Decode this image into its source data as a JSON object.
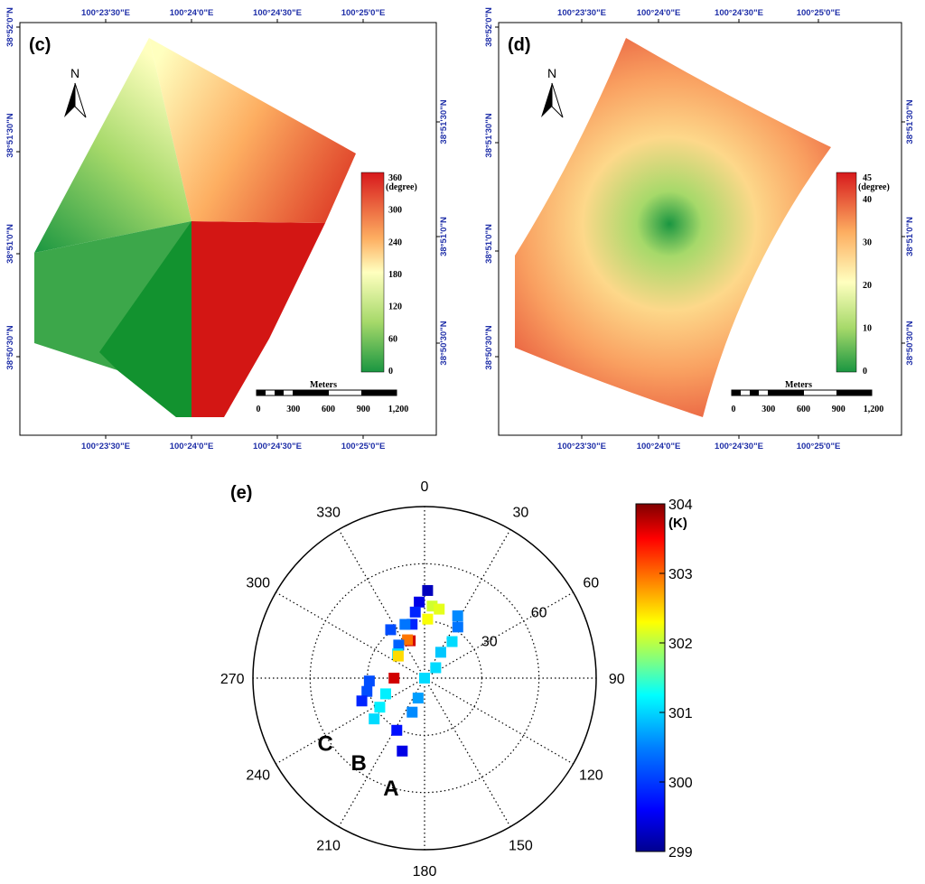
{
  "chart_data": [
    {
      "panel": "(c)",
      "type": "heatmap",
      "description_name": "aspect map",
      "north_label": "N",
      "lon_ticks": [
        "100°23'30\"E",
        "100°24'0\"E",
        "100°24'30\"E",
        "100°25'0\"E"
      ],
      "lat_ticks": [
        "38°52'0\"N",
        "38°51'30\"N",
        "38°51'0\"N",
        "38°50'30\"N"
      ],
      "colorbar": {
        "unit": "(degree)",
        "min": 0,
        "max": 360,
        "ticks": [
          "360",
          "300",
          "240",
          "180",
          "120",
          "60",
          "0"
        ],
        "colors": [
          "#d7191c",
          "#fdae61",
          "#ffffbf",
          "#a6d96a",
          "#1a9641"
        ]
      },
      "scalebar": {
        "title": "Meters",
        "labels": [
          "0",
          "300",
          "600",
          "900",
          "1,200"
        ]
      }
    },
    {
      "panel": "(d)",
      "type": "heatmap",
      "description_name": "slope map",
      "north_label": "N",
      "lon_ticks": [
        "100°23'30\"E",
        "100°24'0\"E",
        "100°24'30\"E",
        "100°25'0\"E"
      ],
      "lat_ticks": [
        "38°52'0\"N",
        "38°51'30\"N",
        "38°51'0\"N",
        "38°50'30\"N"
      ],
      "colorbar": {
        "unit": "(degree)",
        "min": 0,
        "max": 45,
        "ticks": [
          "45",
          "40",
          "30",
          "20",
          "10",
          "0"
        ],
        "colors": [
          "#d7191c",
          "#fdae61",
          "#ffffbf",
          "#a6d96a",
          "#1a9641"
        ]
      },
      "scalebar": {
        "title": "Meters",
        "labels": [
          "0",
          "300",
          "600",
          "900",
          "1,200"
        ]
      }
    },
    {
      "panel": "(e)",
      "type": "scatter",
      "coordinate_system": "polar",
      "azimuth_labels": [
        {
          "angle": 0,
          "text": "0"
        },
        {
          "angle": 30,
          "text": "30"
        },
        {
          "angle": 60,
          "text": "60"
        },
        {
          "angle": 90,
          "text": "90"
        },
        {
          "angle": 120,
          "text": "120"
        },
        {
          "angle": 150,
          "text": "150"
        },
        {
          "angle": 180,
          "text": "180"
        },
        {
          "angle": 210,
          "text": "210"
        },
        {
          "angle": 240,
          "text": "240"
        },
        {
          "angle": 270,
          "text": "270"
        },
        {
          "angle": 300,
          "text": "300"
        },
        {
          "angle": 330,
          "text": "330"
        }
      ],
      "radial_ticks": [
        {
          "r": 30,
          "text": "30"
        },
        {
          "r": 60,
          "text": "60"
        }
      ],
      "r_max": 90,
      "colorbar": {
        "unit": "(K)",
        "min": 299,
        "max": 304,
        "ticks": [
          "304",
          "303",
          "302",
          "301",
          "300",
          "299"
        ],
        "colors": [
          "#00008f",
          "#0000ff",
          "#0080ff",
          "#00ffff",
          "#80ff80",
          "#ffff00",
          "#ff8000",
          "#ff0000",
          "#800000"
        ]
      },
      "series_labels": [
        {
          "text": "A",
          "azimuth": 197,
          "zenith": 60
        },
        {
          "text": "B",
          "azimuth": 218,
          "zenith": 56
        },
        {
          "text": "C",
          "azimuth": 237,
          "zenith": 62
        }
      ],
      "points": [
        {
          "azimuth": 2,
          "zenith": 46,
          "temp": 299.3
        },
        {
          "azimuth": 356,
          "zenith": 40,
          "temp": 299.5
        },
        {
          "azimuth": 6,
          "zenith": 38,
          "temp": 301.9
        },
        {
          "azimuth": 352,
          "zenith": 35,
          "temp": 299.8
        },
        {
          "azimuth": 347,
          "zenith": 29,
          "temp": 299.8
        },
        {
          "azimuth": 339,
          "zenith": 21,
          "temp": 303.6
        },
        {
          "azimuth": 12,
          "zenith": 37,
          "temp": 302.0
        },
        {
          "azimuth": 3,
          "zenith": 31,
          "temp": 302.1
        },
        {
          "azimuth": 340,
          "zenith": 30,
          "temp": 300.2
        },
        {
          "azimuth": 325,
          "zenith": 31,
          "temp": 300.0
        },
        {
          "azimuth": 336,
          "zenith": 22,
          "temp": 302.8
        },
        {
          "azimuth": 322,
          "zenith": 22,
          "temp": 300.1
        },
        {
          "azimuth": 312,
          "zenith": 19,
          "temp": 300.7
        },
        {
          "azimuth": 310,
          "zenith": 18,
          "temp": 302.3
        },
        {
          "azimuth": 28,
          "zenith": 37,
          "temp": 300.3
        },
        {
          "azimuth": 33,
          "zenith": 32,
          "temp": 300.2
        },
        {
          "azimuth": 37,
          "zenith": 24,
          "temp": 300.7
        },
        {
          "azimuth": 32,
          "zenith": 16,
          "temp": 300.6
        },
        {
          "azimuth": 47,
          "zenith": 8,
          "temp": 300.7
        },
        {
          "azimuth": 90,
          "zenith": 0,
          "temp": 300.7
        },
        {
          "azimuth": 270,
          "zenith": 16,
          "temp": 303.6
        },
        {
          "azimuth": 267,
          "zenith": 29,
          "temp": 300.0
        },
        {
          "azimuth": 257,
          "zenith": 31,
          "temp": 300.0
        },
        {
          "azimuth": 250,
          "zenith": 35,
          "temp": 299.8
        },
        {
          "azimuth": 248,
          "zenith": 22,
          "temp": 300.8
        },
        {
          "azimuth": 237,
          "zenith": 28,
          "temp": 300.8
        },
        {
          "azimuth": 231,
          "zenith": 34,
          "temp": 300.7
        },
        {
          "azimuth": 198,
          "zenith": 11,
          "temp": 300.4
        },
        {
          "azimuth": 200,
          "zenith": 19,
          "temp": 300.3
        },
        {
          "azimuth": 208,
          "zenith": 31,
          "temp": 299.7
        },
        {
          "azimuth": 197,
          "zenith": 40,
          "temp": 299.5
        }
      ]
    }
  ]
}
